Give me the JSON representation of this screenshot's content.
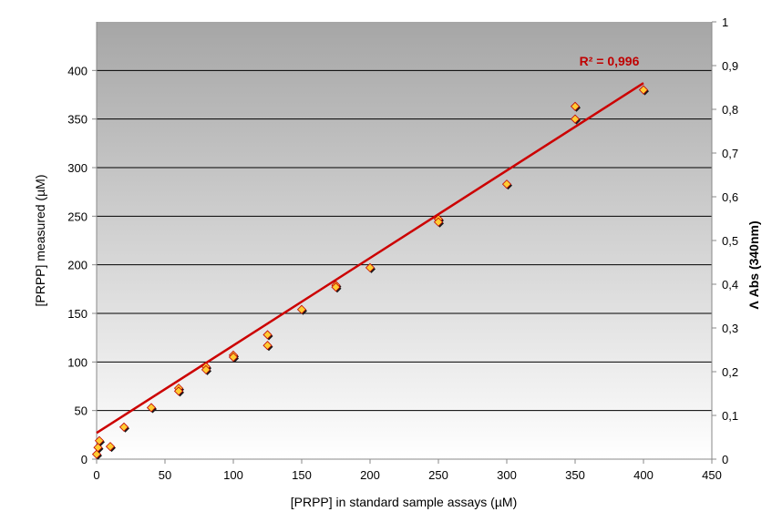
{
  "chart_data": {
    "type": "scatter",
    "title": "",
    "xlabel": "[PRPP]  in standard sample assays (µM)",
    "ylabel": "[PRPP]  measured (µM)",
    "y2label": "Λ Abs (340nm)",
    "xlim": [
      0,
      450
    ],
    "ylim": [
      0,
      450
    ],
    "y2lim": [
      0,
      1
    ],
    "x_ticks": [
      "0",
      "50",
      "100",
      "150",
      "200",
      "250",
      "300",
      "350",
      "400",
      "450"
    ],
    "y_ticks": [
      "0",
      "50",
      "100",
      "150",
      "200",
      "250",
      "300",
      "350",
      "400"
    ],
    "y2_ticks": [
      "0",
      "0,1",
      "0,2",
      "0,3",
      "0,4",
      "0,5",
      "0,6",
      "0,7",
      "0,8",
      "0,9",
      "1"
    ],
    "grid": "horizontal",
    "colors": {
      "points": "#ffcc33",
      "point_edge": "#c00000",
      "trend": "#cc0000",
      "plot_bg_top": "#a6a6a6",
      "plot_bg_bottom": "#ffffff"
    },
    "series": [
      {
        "points": [
          [
            0,
            5
          ],
          [
            1,
            12
          ],
          [
            2,
            19
          ],
          [
            10,
            13
          ],
          [
            20,
            33
          ],
          [
            40,
            53
          ],
          [
            60,
            73
          ],
          [
            60,
            70
          ],
          [
            80,
            95
          ],
          [
            80,
            92
          ],
          [
            100,
            107
          ],
          [
            100,
            105
          ],
          [
            125,
            128
          ],
          [
            125,
            117
          ],
          [
            150,
            154
          ],
          [
            175,
            179
          ],
          [
            175,
            177
          ],
          [
            200,
            197
          ],
          [
            250,
            247
          ],
          [
            250,
            244
          ],
          [
            300,
            283
          ],
          [
            350,
            363
          ],
          [
            350,
            350
          ],
          [
            400,
            380
          ]
        ]
      }
    ],
    "trendline": {
      "x": [
        0,
        400
      ],
      "y": [
        27,
        387
      ]
    },
    "annotation": {
      "text": "R² = 0,996",
      "x": 375,
      "y": 405
    }
  }
}
